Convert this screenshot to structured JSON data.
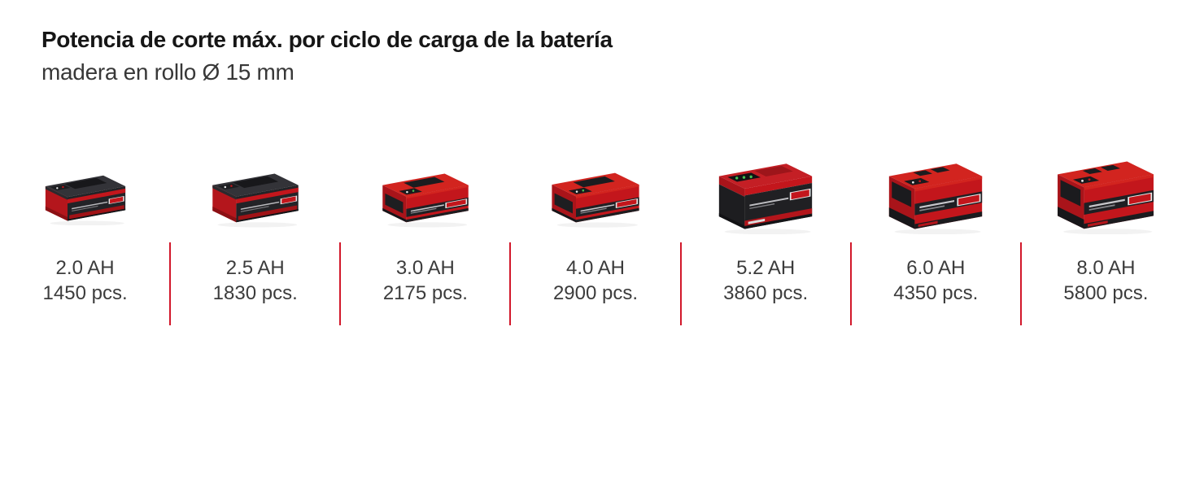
{
  "header": {
    "title": "Potencia de corte máx. por ciclo de carga de la batería",
    "subtitle": "madera en rollo Ø 15 mm"
  },
  "chart_data": {
    "type": "table",
    "title": "Potencia de corte máx. por ciclo de carga de la batería",
    "subtitle": "madera en rollo Ø 15 mm",
    "categories": [
      "2.0 AH",
      "2.5 AH",
      "3.0 AH",
      "4.0 AH",
      "5.2 AH",
      "6.0 AH",
      "8.0 AH"
    ],
    "values": [
      1450,
      1830,
      2175,
      2900,
      3860,
      4350,
      5800
    ],
    "unit": "pcs.",
    "layout": "7 columns separated by red vertical dividers, battery product image above each label"
  },
  "colors": {
    "divider": "#d2182b",
    "brand_red": "#c3161c",
    "title_text": "#161616",
    "label_text": "#3c3c3c"
  },
  "items": [
    {
      "capacity": "2.0 AH",
      "pieces": "1450 pcs.",
      "style": "compact-dark",
      "icon": "battery-2-0ah-image"
    },
    {
      "capacity": "2.5 AH",
      "pieces": "1830 pcs.",
      "style": "compact-dark",
      "icon": "battery-2-5ah-image"
    },
    {
      "capacity": "3.0 AH",
      "pieces": "2175 pcs.",
      "style": "compact-red",
      "icon": "battery-3-0ah-image"
    },
    {
      "capacity": "4.0 AH",
      "pieces": "2900 pcs.",
      "style": "compact-red",
      "icon": "battery-4-0ah-image"
    },
    {
      "capacity": "5.2 AH",
      "pieces": "3860 pcs.",
      "style": "tall-dark",
      "icon": "battery-5-2ah-image"
    },
    {
      "capacity": "6.0 AH",
      "pieces": "4350 pcs.",
      "style": "tall-red",
      "icon": "battery-6-0ah-image"
    },
    {
      "capacity": "8.0 AH",
      "pieces": "5800 pcs.",
      "style": "tall-red",
      "icon": "battery-8-0ah-image"
    }
  ]
}
